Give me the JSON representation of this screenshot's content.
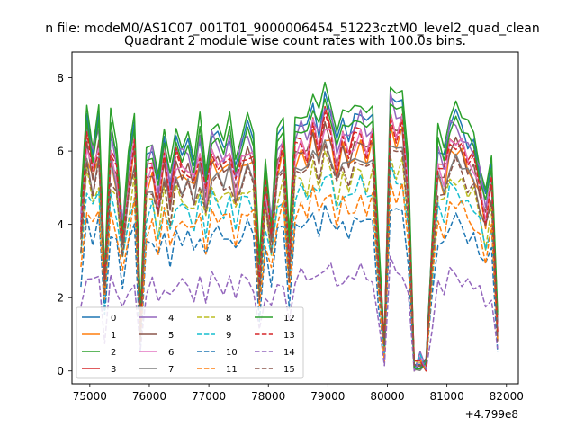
{
  "chart_data": {
    "type": "line",
    "suptitle": "n file: modeM0/AS1C07_001T01_9000006454_51223cztM0_level2_quad_clean",
    "title": "Quadrant 2 module wise count rates with 100.0s bins.",
    "xlabel": "",
    "ylabel": "",
    "x_offset_label": "+4.799e8",
    "xlim": [
      74700,
      82200
    ],
    "ylim": [
      -0.35,
      8.7
    ],
    "x_ticks": [
      {
        "value": 75000,
        "label": "75000"
      },
      {
        "value": 76000,
        "label": "76000"
      },
      {
        "value": 77000,
        "label": "77000"
      },
      {
        "value": 78000,
        "label": "78000"
      },
      {
        "value": 79000,
        "label": "79000"
      },
      {
        "value": 80000,
        "label": "80000"
      },
      {
        "value": 81000,
        "label": "81000"
      },
      {
        "value": 82000,
        "label": "82000"
      }
    ],
    "y_ticks": [
      {
        "value": 0,
        "label": "0"
      },
      {
        "value": 2,
        "label": "2"
      },
      {
        "value": 4,
        "label": "4"
      },
      {
        "value": 6,
        "label": "6"
      },
      {
        "value": 8,
        "label": "8"
      }
    ],
    "grid": false,
    "legend_placement": "lower-left",
    "x": [
      74850,
      74950,
      75050,
      75150,
      75250,
      75350,
      75450,
      75550,
      75650,
      75750,
      75850,
      75950,
      76050,
      76150,
      76250,
      76350,
      76450,
      76550,
      76650,
      76750,
      76850,
      76950,
      77050,
      77150,
      77250,
      77350,
      77450,
      77550,
      77650,
      77750,
      77850,
      77950,
      78050,
      78150,
      78250,
      78350,
      78450,
      78550,
      78650,
      78750,
      78850,
      78950,
      79050,
      79150,
      79250,
      79350,
      79450,
      79550,
      79650,
      79750,
      79850,
      79950,
      80050,
      80150,
      80250,
      80350,
      80450,
      80550,
      80650,
      80750,
      80850,
      80950,
      81050,
      81150,
      81250,
      81350,
      81450,
      81550,
      81650,
      81750,
      81850
    ],
    "series": [
      {
        "name": "0",
        "color": "#1f77b4",
        "dash": "solid",
        "scale": 1.0
      },
      {
        "name": "1",
        "color": "#ff7f0e",
        "dash": "solid",
        "scale": 0.87
      },
      {
        "name": "2",
        "color": "#2ca02c",
        "dash": "solid",
        "scale": 1.05
      },
      {
        "name": "3",
        "color": "#d62728",
        "dash": "solid",
        "scale": 0.93
      },
      {
        "name": "4",
        "color": "#9467bd",
        "dash": "solid",
        "scale": 0.97
      },
      {
        "name": "5",
        "color": "#8c564b",
        "dash": "solid",
        "scale": 0.89
      },
      {
        "name": "6",
        "color": "#e377c2",
        "dash": "solid",
        "scale": 0.91
      },
      {
        "name": "7",
        "color": "#7f7f7f",
        "dash": "solid",
        "scale": 0.84
      },
      {
        "name": "8",
        "color": "#bcbd22",
        "dash": "dashed",
        "scale": 0.77
      },
      {
        "name": "9",
        "color": "#17becf",
        "dash": "dashed",
        "scale": 0.72
      },
      {
        "name": "10",
        "color": "#1f77b4",
        "dash": "dashed",
        "scale": 0.59
      },
      {
        "name": "11",
        "color": "#ff7f0e",
        "dash": "dashed",
        "scale": 0.66
      },
      {
        "name": "12",
        "color": "#2ca02c",
        "dash": "solid",
        "scale": 0.99
      },
      {
        "name": "13",
        "color": "#d62728",
        "dash": "dashed",
        "scale": 0.91
      },
      {
        "name": "14",
        "color": "#9467bd",
        "dash": "dashed",
        "scale": 0.38
      },
      {
        "name": "15",
        "color": "#8c564b",
        "dash": "dashed",
        "scale": 0.81
      }
    ],
    "base_values": [
      4.3,
      6.9,
      6.0,
      6.8,
      2.6,
      6.6,
      5.9,
      4.0,
      5.6,
      6.8,
      1.3,
      5.8,
      6.1,
      5.0,
      6.4,
      5.2,
      6.3,
      6.0,
      6.1,
      5.6,
      6.5,
      5.2,
      6.5,
      6.3,
      6.1,
      6.5,
      5.5,
      6.3,
      6.6,
      6.3,
      2.7,
      5.5,
      4.1,
      6.2,
      6.7,
      3.3,
      6.6,
      6.8,
      6.5,
      7.3,
      6.6,
      7.5,
      7.1,
      6.1,
      6.9,
      6.5,
      6.9,
      7.1,
      6.6,
      7.0,
      3.3,
      0.7,
      7.6,
      7.1,
      7.4,
      5.3,
      0.05,
      0.3,
      0.1,
      3.5,
      6.2,
      5.8,
      6.8,
      6.9,
      6.7,
      6.3,
      6.2,
      5.5,
      4.6,
      5.7,
      1.3
    ]
  }
}
